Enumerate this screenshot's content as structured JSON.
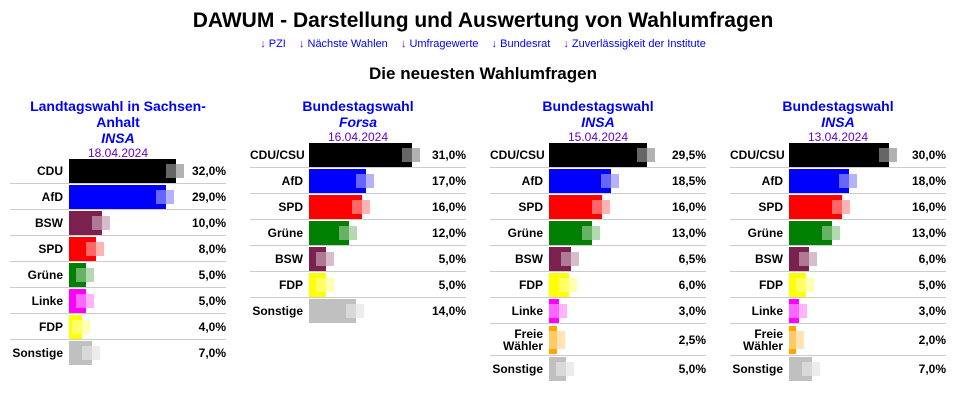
{
  "title": "DAWUM - Darstellung und Auswertung von Wahlumfragen",
  "nav": [
    "PZI",
    "Nächste Wahlen",
    "Umfragewerte",
    "Bundesrat",
    "Zuverlässigkeit der Institute"
  ],
  "subtitle": "Die neuesten Wahlumfragen",
  "colors": {
    "CDU": "#000000",
    "CDU/CSU": "#000000",
    "AfD": "#0000ff",
    "BSW": "#7a2150",
    "SPD": "#ff0000",
    "Grüne": "#008000",
    "Linke": "#ff00ff",
    "FDP": "#ffff00",
    "Freie Wähler": "#ffa500",
    "Sonstige": "#c0c0c0"
  },
  "polls": [
    {
      "election": "Landtagswahl in Sachsen-Anhalt",
      "institute": "INSA",
      "date": "18.04.2024",
      "results": [
        {
          "party": "CDU",
          "value": 32.0,
          "label": "32,0%"
        },
        {
          "party": "AfD",
          "value": 29.0,
          "label": "29,0%"
        },
        {
          "party": "BSW",
          "value": 10.0,
          "label": "10,0%"
        },
        {
          "party": "SPD",
          "value": 8.0,
          "label": "8,0%"
        },
        {
          "party": "Grüne",
          "value": 5.0,
          "label": "5,0%"
        },
        {
          "party": "Linke",
          "value": 5.0,
          "label": "5,0%"
        },
        {
          "party": "FDP",
          "value": 4.0,
          "label": "4,0%"
        },
        {
          "party": "Sonstige",
          "value": 7.0,
          "label": "7,0%"
        }
      ]
    },
    {
      "election": "Bundestagswahl",
      "institute": "Forsa",
      "date": "16.04.2024",
      "results": [
        {
          "party": "CDU/CSU",
          "value": 31.0,
          "label": "31,0%"
        },
        {
          "party": "AfD",
          "value": 17.0,
          "label": "17,0%"
        },
        {
          "party": "SPD",
          "value": 16.0,
          "label": "16,0%"
        },
        {
          "party": "Grüne",
          "value": 12.0,
          "label": "12,0%"
        },
        {
          "party": "BSW",
          "value": 5.0,
          "label": "5,0%"
        },
        {
          "party": "FDP",
          "value": 5.0,
          "label": "5,0%"
        },
        {
          "party": "Sonstige",
          "value": 14.0,
          "label": "14,0%"
        }
      ]
    },
    {
      "election": "Bundestagswahl",
      "institute": "INSA",
      "date": "15.04.2024",
      "results": [
        {
          "party": "CDU/CSU",
          "value": 29.5,
          "label": "29,5%"
        },
        {
          "party": "AfD",
          "value": 18.5,
          "label": "18,5%"
        },
        {
          "party": "SPD",
          "value": 16.0,
          "label": "16,0%"
        },
        {
          "party": "Grüne",
          "value": 13.0,
          "label": "13,0%"
        },
        {
          "party": "BSW",
          "value": 6.5,
          "label": "6,5%"
        },
        {
          "party": "FDP",
          "value": 6.0,
          "label": "6,0%"
        },
        {
          "party": "Linke",
          "value": 3.0,
          "label": "3,0%"
        },
        {
          "party": "Freie Wähler",
          "value": 2.5,
          "label": "2,5%"
        },
        {
          "party": "Sonstige",
          "value": 5.0,
          "label": "5,0%"
        }
      ]
    },
    {
      "election": "Bundestagswahl",
      "institute": "INSA",
      "date": "13.04.2024",
      "results": [
        {
          "party": "CDU/CSU",
          "value": 30.0,
          "label": "30,0%"
        },
        {
          "party": "AfD",
          "value": 18.0,
          "label": "18,0%"
        },
        {
          "party": "SPD",
          "value": 16.0,
          "label": "16,0%"
        },
        {
          "party": "Grüne",
          "value": 13.0,
          "label": "13,0%"
        },
        {
          "party": "BSW",
          "value": 6.0,
          "label": "6,0%"
        },
        {
          "party": "FDP",
          "value": 5.0,
          "label": "5,0%"
        },
        {
          "party": "Linke",
          "value": 3.0,
          "label": "3,0%"
        },
        {
          "party": "Freie Wähler",
          "value": 2.0,
          "label": "2,0%"
        },
        {
          "party": "Sonstige",
          "value": 7.0,
          "label": "7,0%"
        }
      ]
    }
  ]
}
